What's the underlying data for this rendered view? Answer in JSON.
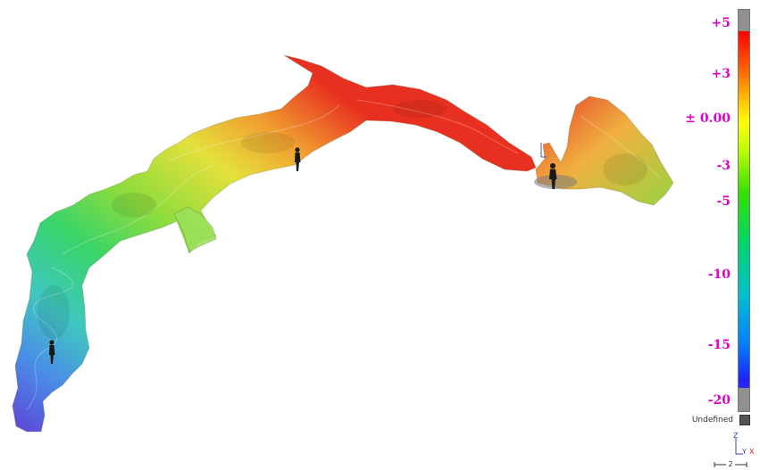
{
  "colorbar": {
    "ticks": [
      "+5",
      "+3",
      "± 0.00",
      "-3",
      "-5",
      "-10",
      "-15",
      "-20"
    ],
    "undefined_label": "Undefined",
    "colors": {
      "max": "#ff0000",
      "zero": "#ffff00",
      "mid": "#33e000",
      "low": "#00c0d0",
      "min": "#2020ff",
      "out_of_range": "#909090",
      "undefined": "#555555"
    }
  },
  "label_color": "#e000c8",
  "axes": {
    "z": "Z",
    "y": "Y",
    "x": "X"
  },
  "scale_label": "2",
  "figures": [
    "person-silhouette",
    "person-silhouette",
    "person-silhouette"
  ]
}
